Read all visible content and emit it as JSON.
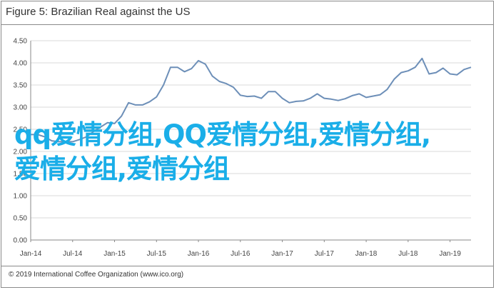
{
  "header": {
    "title": "Figure 5: Brazilian Real against the US"
  },
  "footer": {
    "text": "© 2019 International Coffee Organization (www.ico.org)"
  },
  "overlay": {
    "text": "qq爱情分组,QQ爱情分组,爱情分组,爱情分组,爱情分组"
  },
  "colors": {
    "line": "#6d8fb8",
    "grid": "#d9d9d9",
    "axis": "#8a8a8a",
    "overlay": "#1aaee8"
  },
  "chart_data": {
    "type": "line",
    "title": "Figure 5: Brazilian Real against the US",
    "xlabel": "",
    "ylabel": "",
    "ylim": [
      0,
      4.5
    ],
    "yticks": [
      "0.00",
      "0.50",
      "1.00",
      "1.50",
      "2.00",
      "2.50",
      "3.00",
      "3.50",
      "4.00",
      "4.50"
    ],
    "xticks": [
      "Jan-14",
      "Jul-14",
      "Jan-15",
      "Jul-15",
      "Jan-16",
      "Jul-16",
      "Jan-17",
      "Jul-17",
      "Jan-18",
      "Jul-18",
      "Jan-19"
    ],
    "grid": true,
    "series": [
      {
        "x": [
          "2014-01",
          "2014-02",
          "2014-03",
          "2014-04",
          "2014-05",
          "2014-06",
          "2014-07",
          "2014-08",
          "2014-09",
          "2014-10",
          "2014-11",
          "2014-12",
          "2015-01",
          "2015-02",
          "2015-03",
          "2015-04",
          "2015-05",
          "2015-06",
          "2015-07",
          "2015-08",
          "2015-09",
          "2015-10",
          "2015-11",
          "2015-12",
          "2016-01",
          "2016-02",
          "2016-03",
          "2016-04",
          "2016-05",
          "2016-06",
          "2016-07",
          "2016-08",
          "2016-09",
          "2016-10",
          "2016-11",
          "2016-12",
          "2017-01",
          "2017-02",
          "2017-03",
          "2017-04",
          "2017-05",
          "2017-06",
          "2017-07",
          "2017-08",
          "2017-09",
          "2017-10",
          "2017-11",
          "2017-12",
          "2018-01",
          "2018-02",
          "2018-03",
          "2018-04",
          "2018-05",
          "2018-06",
          "2018-07",
          "2018-08",
          "2018-09",
          "2018-10",
          "2018-11",
          "2018-12",
          "2019-01",
          "2019-02",
          "2019-03",
          "2019-04"
        ],
        "values": [
          2.38,
          2.38,
          2.33,
          2.24,
          2.22,
          2.22,
          2.22,
          2.27,
          2.33,
          2.45,
          2.55,
          2.65,
          2.63,
          2.8,
          3.1,
          3.05,
          3.05,
          3.12,
          3.23,
          3.5,
          3.9,
          3.9,
          3.8,
          3.87,
          4.05,
          3.97,
          3.7,
          3.58,
          3.53,
          3.45,
          3.27,
          3.24,
          3.25,
          3.2,
          3.35,
          3.35,
          3.2,
          3.1,
          3.13,
          3.14,
          3.2,
          3.3,
          3.2,
          3.18,
          3.15,
          3.19,
          3.26,
          3.3,
          3.22,
          3.25,
          3.28,
          3.4,
          3.63,
          3.78,
          3.82,
          3.9,
          4.1,
          3.75,
          3.78,
          3.88,
          3.75,
          3.73,
          3.85,
          3.9
        ]
      }
    ]
  }
}
